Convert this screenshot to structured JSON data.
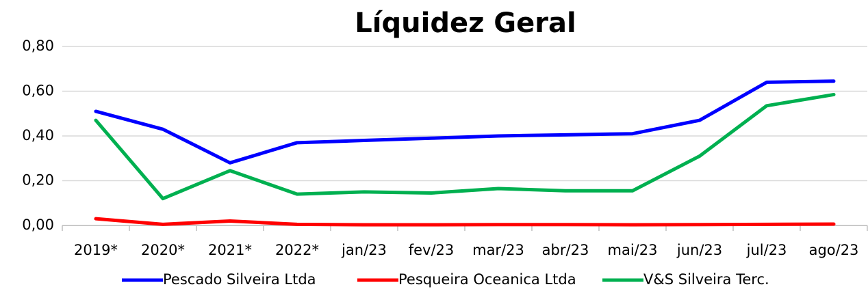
{
  "chart_data": {
    "type": "line",
    "title": "Líquidez Geral",
    "categories": [
      "2019*",
      "2020*",
      "2021*",
      "2022*",
      "jan/23",
      "fev/23",
      "mar/23",
      "abr/23",
      "mai/23",
      "jun/23",
      "jul/23",
      "ago/23"
    ],
    "series": [
      {
        "name": "Pescado Silveira Ltda",
        "color": "#0000ff",
        "values": [
          0.51,
          0.43,
          0.28,
          0.37,
          0.38,
          0.39,
          0.4,
          0.405,
          0.41,
          0.47,
          0.64,
          0.645
        ]
      },
      {
        "name": "Pesqueira Oceanica Ltda",
        "color": "#ff0000",
        "values": [
          0.03,
          0.005,
          0.02,
          0.005,
          0.003,
          0.003,
          0.004,
          0.004,
          0.003,
          0.004,
          0.005,
          0.006
        ]
      },
      {
        "name": "V&S Silveira Terc.",
        "color": "#00b050",
        "values": [
          0.47,
          0.12,
          0.245,
          0.14,
          0.15,
          0.145,
          0.165,
          0.155,
          0.155,
          0.31,
          0.535,
          0.585
        ]
      }
    ],
    "ylim": [
      0,
      0.8
    ],
    "yticks": [
      {
        "value": 0,
        "label": "0,00"
      },
      {
        "value": 0.2,
        "label": "0,20"
      },
      {
        "value": 0.4,
        "label": "0,40"
      },
      {
        "value": 0.6,
        "label": "0,60"
      },
      {
        "value": 0.8,
        "label": "0,80"
      }
    ],
    "grid": true,
    "legend": "bottom"
  }
}
